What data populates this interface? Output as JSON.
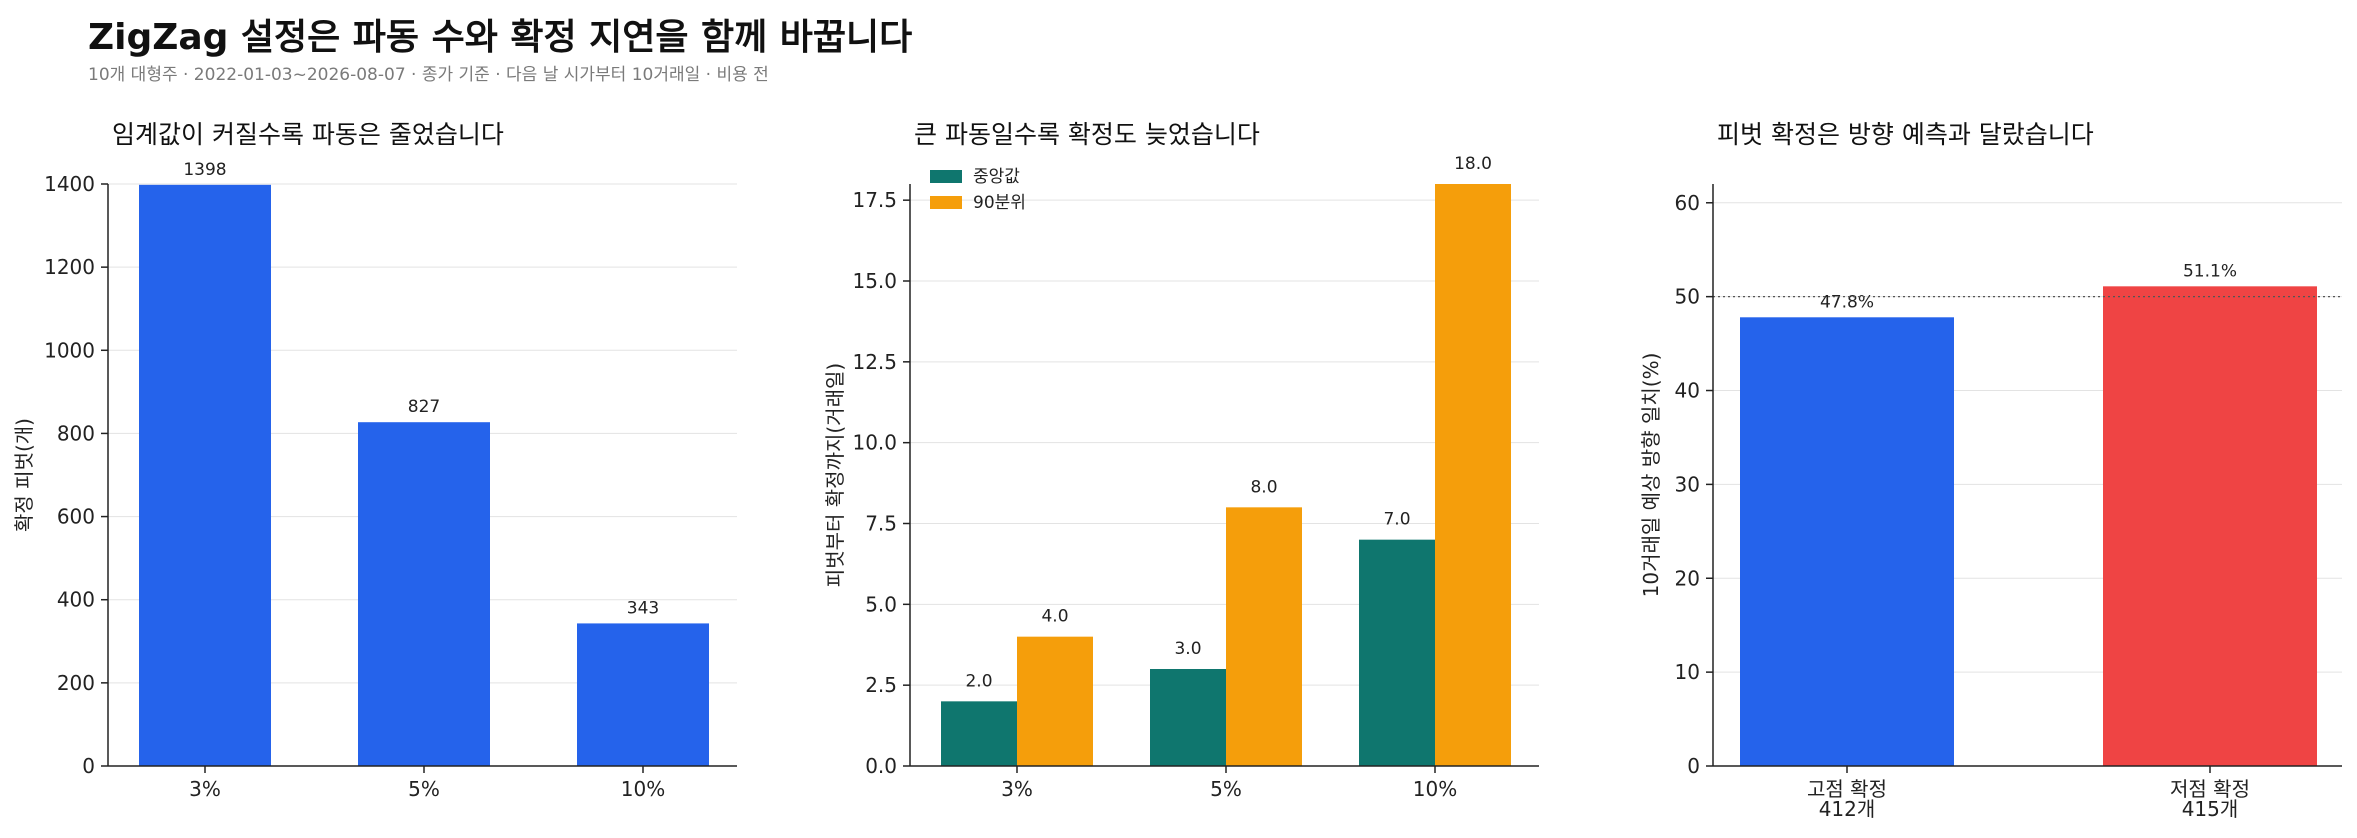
{
  "title": "ZigZag 설정은 파동 수와 확정 지연을 함께 바꿉니다",
  "subtitle": "10개 대형주 · 2022-01-03~2026-08-07 · 종가 기준 · 다음 날 시가부터 10거래일 · 비용 전",
  "colors": {
    "blue": "#2563eb",
    "teal": "#0f766e",
    "orange": "#f59e0b",
    "red": "#ef4444",
    "grid": "#e3e3e3"
  },
  "chart_data": [
    {
      "type": "bar",
      "title": "임계값이 커질수록 파동은 줄었습니다",
      "ylabel": "확정 피벗(개)",
      "categories": [
        "3%",
        "5%",
        "10%"
      ],
      "values": [
        1398,
        827,
        343
      ],
      "data_labels": [
        "1398",
        "827",
        "343"
      ],
      "ylim": [
        0,
        1400
      ],
      "yticks": [
        0,
        200,
        400,
        600,
        800,
        1000,
        1200,
        1400
      ],
      "grid": true
    },
    {
      "type": "bar",
      "title": "큰 파동일수록 확정도 늦었습니다",
      "ylabel": "피벗부터 확정까지(거래일)",
      "categories": [
        "3%",
        "5%",
        "10%"
      ],
      "series": [
        {
          "name": "중앙값",
          "values": [
            2.0,
            3.0,
            7.0
          ],
          "labels": [
            "2.0",
            "3.0",
            "7.0"
          ],
          "color": "#0f766e"
        },
        {
          "name": "90분위",
          "values": [
            4.0,
            8.0,
            18.0
          ],
          "labels": [
            "4.0",
            "8.0",
            "18.0"
          ],
          "color": "#f59e0b"
        }
      ],
      "ylim": [
        0,
        18
      ],
      "yticks": [
        0.0,
        2.5,
        5.0,
        7.5,
        10.0,
        12.5,
        15.0,
        17.5
      ],
      "ytick_labels": [
        "0.0",
        "2.5",
        "5.0",
        "7.5",
        "10.0",
        "12.5",
        "15.0",
        "17.5"
      ],
      "legend": "top-left",
      "grid": true
    },
    {
      "type": "bar",
      "title": "피벗 확정은 방향 예측과 달랐습니다",
      "ylabel": "10거래일 예상 방향 일치(%)",
      "categories": [
        "고점 확정\n412개",
        "저점 확정\n415개"
      ],
      "values": [
        47.8,
        51.1
      ],
      "data_labels": [
        "47.8%",
        "51.1%"
      ],
      "colors": [
        "#2563eb",
        "#ef4444"
      ],
      "ylim": [
        0,
        62
      ],
      "yticks": [
        0,
        10,
        20,
        30,
        40,
        50,
        60
      ],
      "reference_line": 50,
      "grid": true
    }
  ]
}
